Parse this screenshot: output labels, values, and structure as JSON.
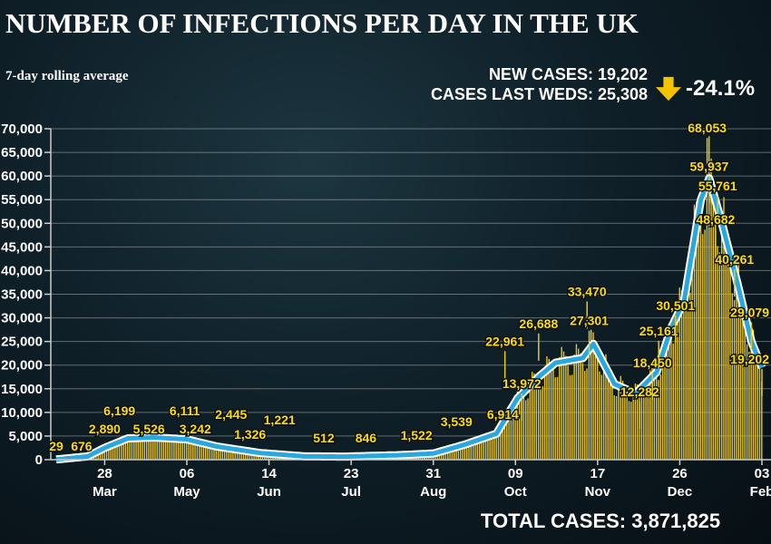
{
  "header": {
    "title": "NUMBER OF INFECTIONS PER DAY IN THE UK",
    "subtitle": "7-day rolling average"
  },
  "stats": {
    "new_cases": "NEW CASES: 19,202",
    "last_weds": "CASES LAST WEDS: 25,308",
    "change": "-24.1%",
    "arrow_icon": "down-arrow-icon",
    "arrow_color": "#f5c400"
  },
  "footer": {
    "total": "TOTAL CASES: 3,871,825"
  },
  "chart_data": {
    "type": "bar",
    "title": "NUMBER OF INFECTIONS PER DAY IN THE UK",
    "ylim": [
      0,
      70000
    ],
    "yticks": [
      "0",
      "5,000",
      "10,000",
      "15,000",
      "20,000",
      "25,000",
      "30,000",
      "35,000",
      "40,000",
      "45,000",
      "50,000",
      "55,000",
      "60,000",
      "65,000",
      "70,000"
    ],
    "grid": true,
    "xticks": [
      {
        "day": "28",
        "month": "Mar",
        "date": "2020-03-28"
      },
      {
        "day": "06",
        "month": "May",
        "date": "2020-05-06"
      },
      {
        "day": "14",
        "month": "Jun",
        "date": "2020-06-14"
      },
      {
        "day": "23",
        "month": "Jul",
        "date": "2020-07-23"
      },
      {
        "day": "31",
        "month": "Aug",
        "date": "2020-08-31"
      },
      {
        "day": "09",
        "month": "Oct",
        "date": "2020-10-09"
      },
      {
        "day": "17",
        "month": "Nov",
        "date": "2020-11-17"
      },
      {
        "day": "26",
        "month": "Dec",
        "date": "2020-12-26"
      },
      {
        "day": "03",
        "month": "Feb",
        "date": "2021-02-03"
      }
    ],
    "colors": {
      "bars": "#e8c81a",
      "rolling_average": "#29a8e0"
    },
    "rolling_average": [
      [
        "2020-03-05",
        50
      ],
      [
        "2020-03-20",
        700
      ],
      [
        "2020-03-28",
        2500
      ],
      [
        "2020-04-08",
        4500
      ],
      [
        "2020-04-20",
        4700
      ],
      [
        "2020-05-06",
        4300
      ],
      [
        "2020-05-20",
        2800
      ],
      [
        "2020-06-10",
        1400
      ],
      [
        "2020-07-01",
        700
      ],
      [
        "2020-07-20",
        650
      ],
      [
        "2020-08-15",
        950
      ],
      [
        "2020-08-31",
        1300
      ],
      [
        "2020-09-15",
        3200
      ],
      [
        "2020-09-30",
        5500
      ],
      [
        "2020-10-10",
        13000
      ],
      [
        "2020-10-20",
        17500
      ],
      [
        "2020-10-28",
        20500
      ],
      [
        "2020-11-10",
        21500
      ],
      [
        "2020-11-15",
        24500
      ],
      [
        "2020-11-25",
        16000
      ],
      [
        "2020-12-05",
        14000
      ],
      [
        "2020-12-15",
        18500
      ],
      [
        "2020-12-22",
        28000
      ],
      [
        "2020-12-28",
        33500
      ],
      [
        "2021-01-05",
        55000
      ],
      [
        "2021-01-09",
        59500
      ],
      [
        "2021-01-15",
        50000
      ],
      [
        "2021-01-22",
        38000
      ],
      [
        "2021-01-29",
        25000
      ],
      [
        "2021-02-03",
        19500
      ]
    ],
    "annotations": [
      {
        "date": "2020-03-05",
        "value": 29,
        "label": "29"
      },
      {
        "date": "2020-03-17",
        "value": 676,
        "label": "676"
      },
      {
        "date": "2020-03-28",
        "value": 2890,
        "label": "2,890"
      },
      {
        "date": "2020-04-04",
        "value": 6199,
        "label": "6,199"
      },
      {
        "date": "2020-04-18",
        "value": 5526,
        "label": "5,526"
      },
      {
        "date": "2020-05-05",
        "value": 6111,
        "label": "6,111"
      },
      {
        "date": "2020-05-10",
        "value": 3242,
        "label": "3,242"
      },
      {
        "date": "2020-05-27",
        "value": 2445,
        "label": "2,445"
      },
      {
        "date": "2020-06-05",
        "value": 1326,
        "label": "1,326"
      },
      {
        "date": "2020-06-19",
        "value": 1221,
        "label": "1,221"
      },
      {
        "date": "2020-07-10",
        "value": 512,
        "label": "512"
      },
      {
        "date": "2020-07-30",
        "value": 846,
        "label": "846"
      },
      {
        "date": "2020-08-23",
        "value": 1522,
        "label": "1,522"
      },
      {
        "date": "2020-09-11",
        "value": 3539,
        "label": "3,539"
      },
      {
        "date": "2020-10-03",
        "value": 6914,
        "label": "6,914"
      },
      {
        "date": "2020-10-04",
        "value": 22961,
        "label": "22,961"
      },
      {
        "date": "2020-10-12",
        "value": 13972,
        "label": "13,972"
      },
      {
        "date": "2020-10-20",
        "value": 26688,
        "label": "26,688"
      },
      {
        "date": "2020-11-12",
        "value": 33470,
        "label": "33,470"
      },
      {
        "date": "2020-11-13",
        "value": 27301,
        "label": "27,301"
      },
      {
        "date": "2020-12-07",
        "value": 12282,
        "label": "12,282"
      },
      {
        "date": "2020-12-13",
        "value": 18450,
        "label": "18,450"
      },
      {
        "date": "2020-12-16",
        "value": 25161,
        "label": "25,161"
      },
      {
        "date": "2020-12-24",
        "value": 30501,
        "label": "30,501"
      },
      {
        "date": "2021-01-08",
        "value": 68053,
        "label": "68,053"
      },
      {
        "date": "2021-01-09",
        "value": 59937,
        "label": "59,937"
      },
      {
        "date": "2021-01-13",
        "value": 55761,
        "label": "55,761"
      },
      {
        "date": "2021-01-12",
        "value": 48682,
        "label": "48,682"
      },
      {
        "date": "2021-01-21",
        "value": 40261,
        "label": "40,261"
      },
      {
        "date": "2021-01-29",
        "value": 29079,
        "label": "29,079"
      },
      {
        "date": "2021-02-03",
        "value": 19202,
        "label": "19,202"
      }
    ]
  }
}
